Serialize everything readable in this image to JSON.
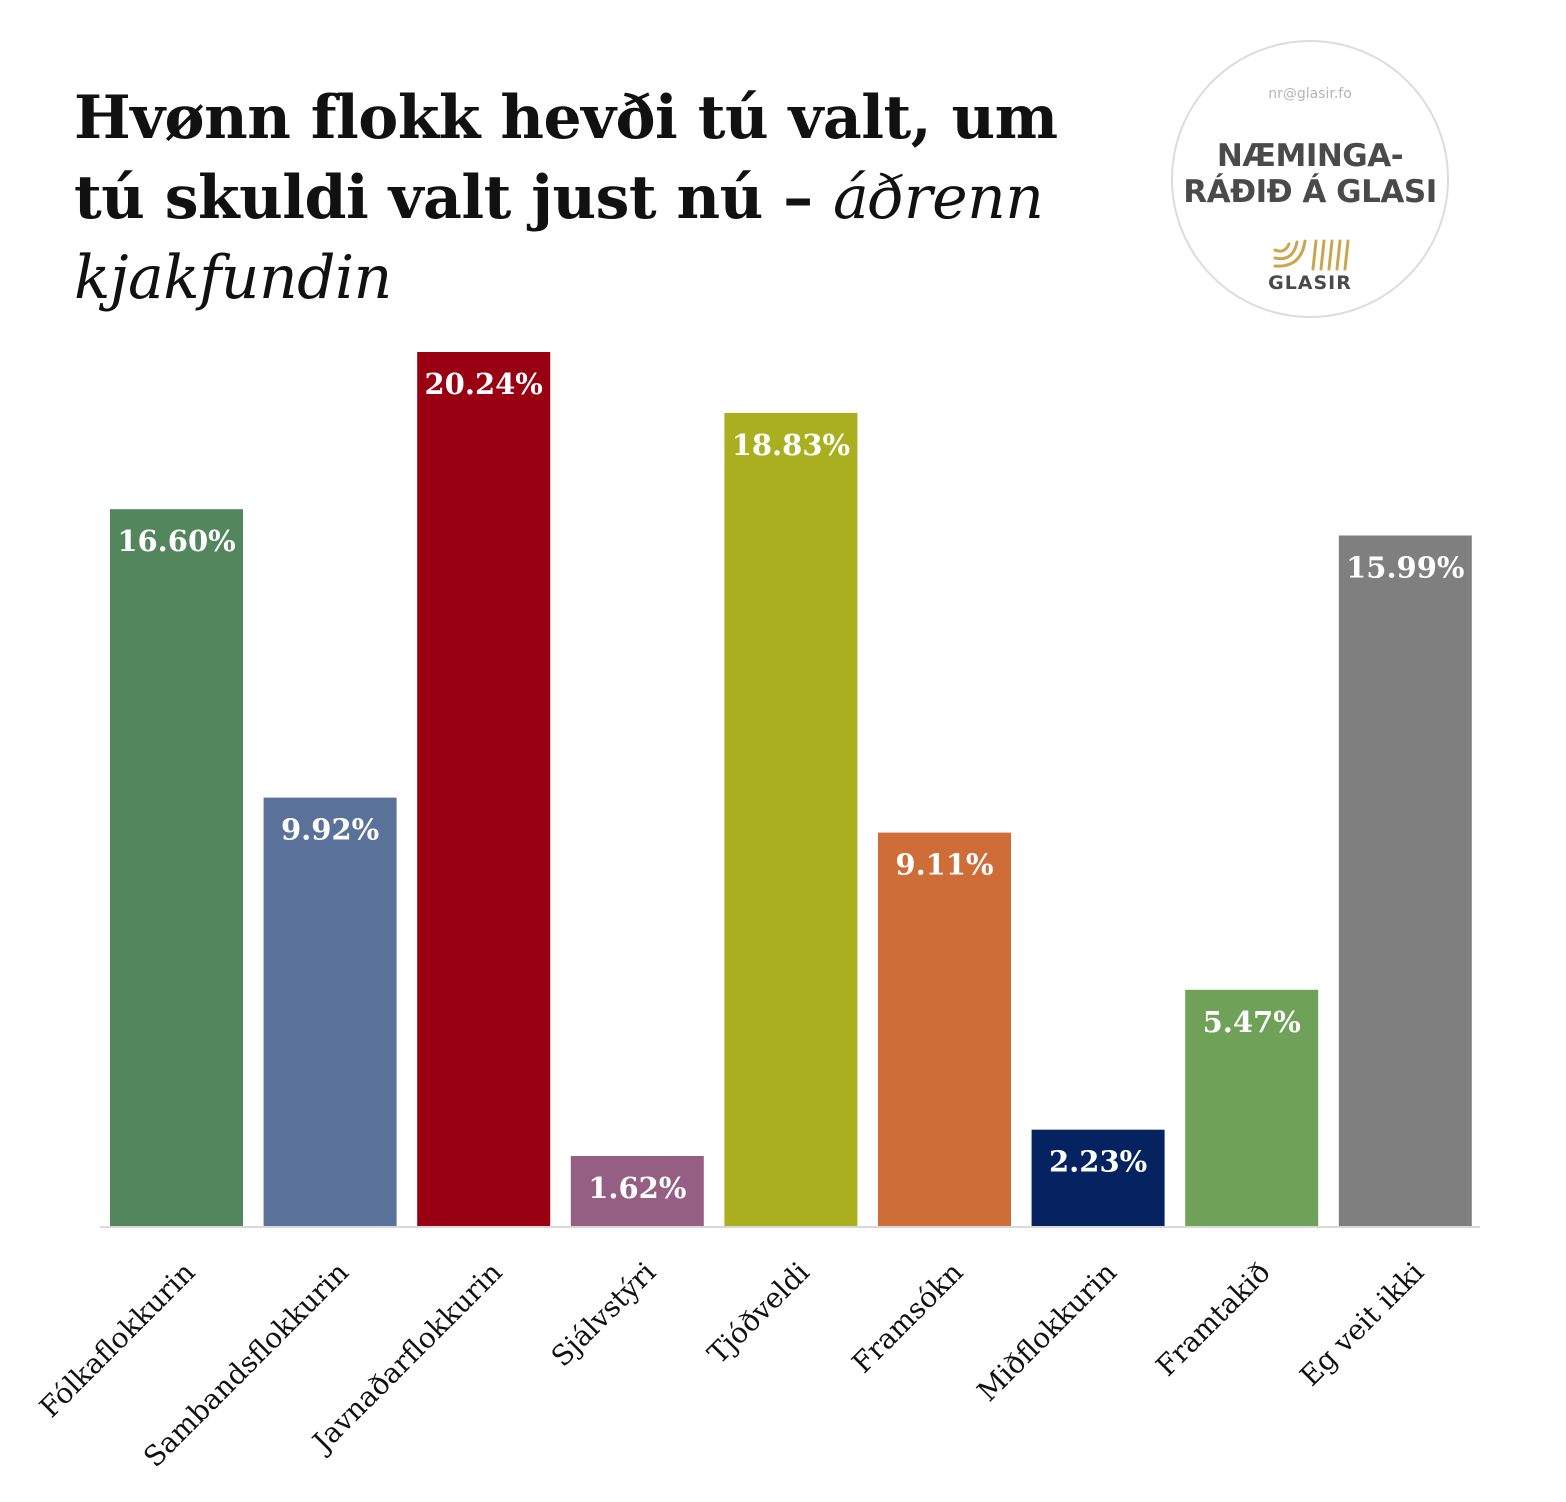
{
  "title": {
    "main": "Hvønn flokk hevði tú valt, um tú skuldi valt just nú – ",
    "emphasis": "áðrenn kjakfundin"
  },
  "logo": {
    "email": "nr@glasir.fo",
    "name_line1": "NÆMINGA-",
    "name_line2": "RÁÐIÐ Á GLASI",
    "brand": "GLASIR",
    "accent_color": "#c9a74e"
  },
  "chart_data": {
    "type": "bar",
    "categories": [
      "Fólkaflokkurin",
      "Sambandsflokkurin",
      "Javnaðarflokkurin",
      "Sjálvstýri",
      "Tjóðveldi",
      "Framsókn",
      "Miðflokkurin",
      "Framtakið",
      "Eg veit ikki"
    ],
    "values": [
      16.6,
      9.92,
      20.24,
      1.62,
      18.83,
      9.11,
      2.23,
      5.47,
      15.99
    ],
    "data_labels": [
      "16.60%",
      "9.92%",
      "20.24%",
      "1.62%",
      "18.83%",
      "9.11%",
      "2.23%",
      "5.47%",
      "15.99%"
    ],
    "colors": [
      "#53865c",
      "#5a7299",
      "#990011",
      "#955f83",
      "#a9af1e",
      "#cf6d39",
      "#042360",
      "#6fa258",
      "#7f7f7f"
    ],
    "unit": "%",
    "ylim": [
      0,
      20.24
    ],
    "grid": false,
    "legend": "none"
  }
}
